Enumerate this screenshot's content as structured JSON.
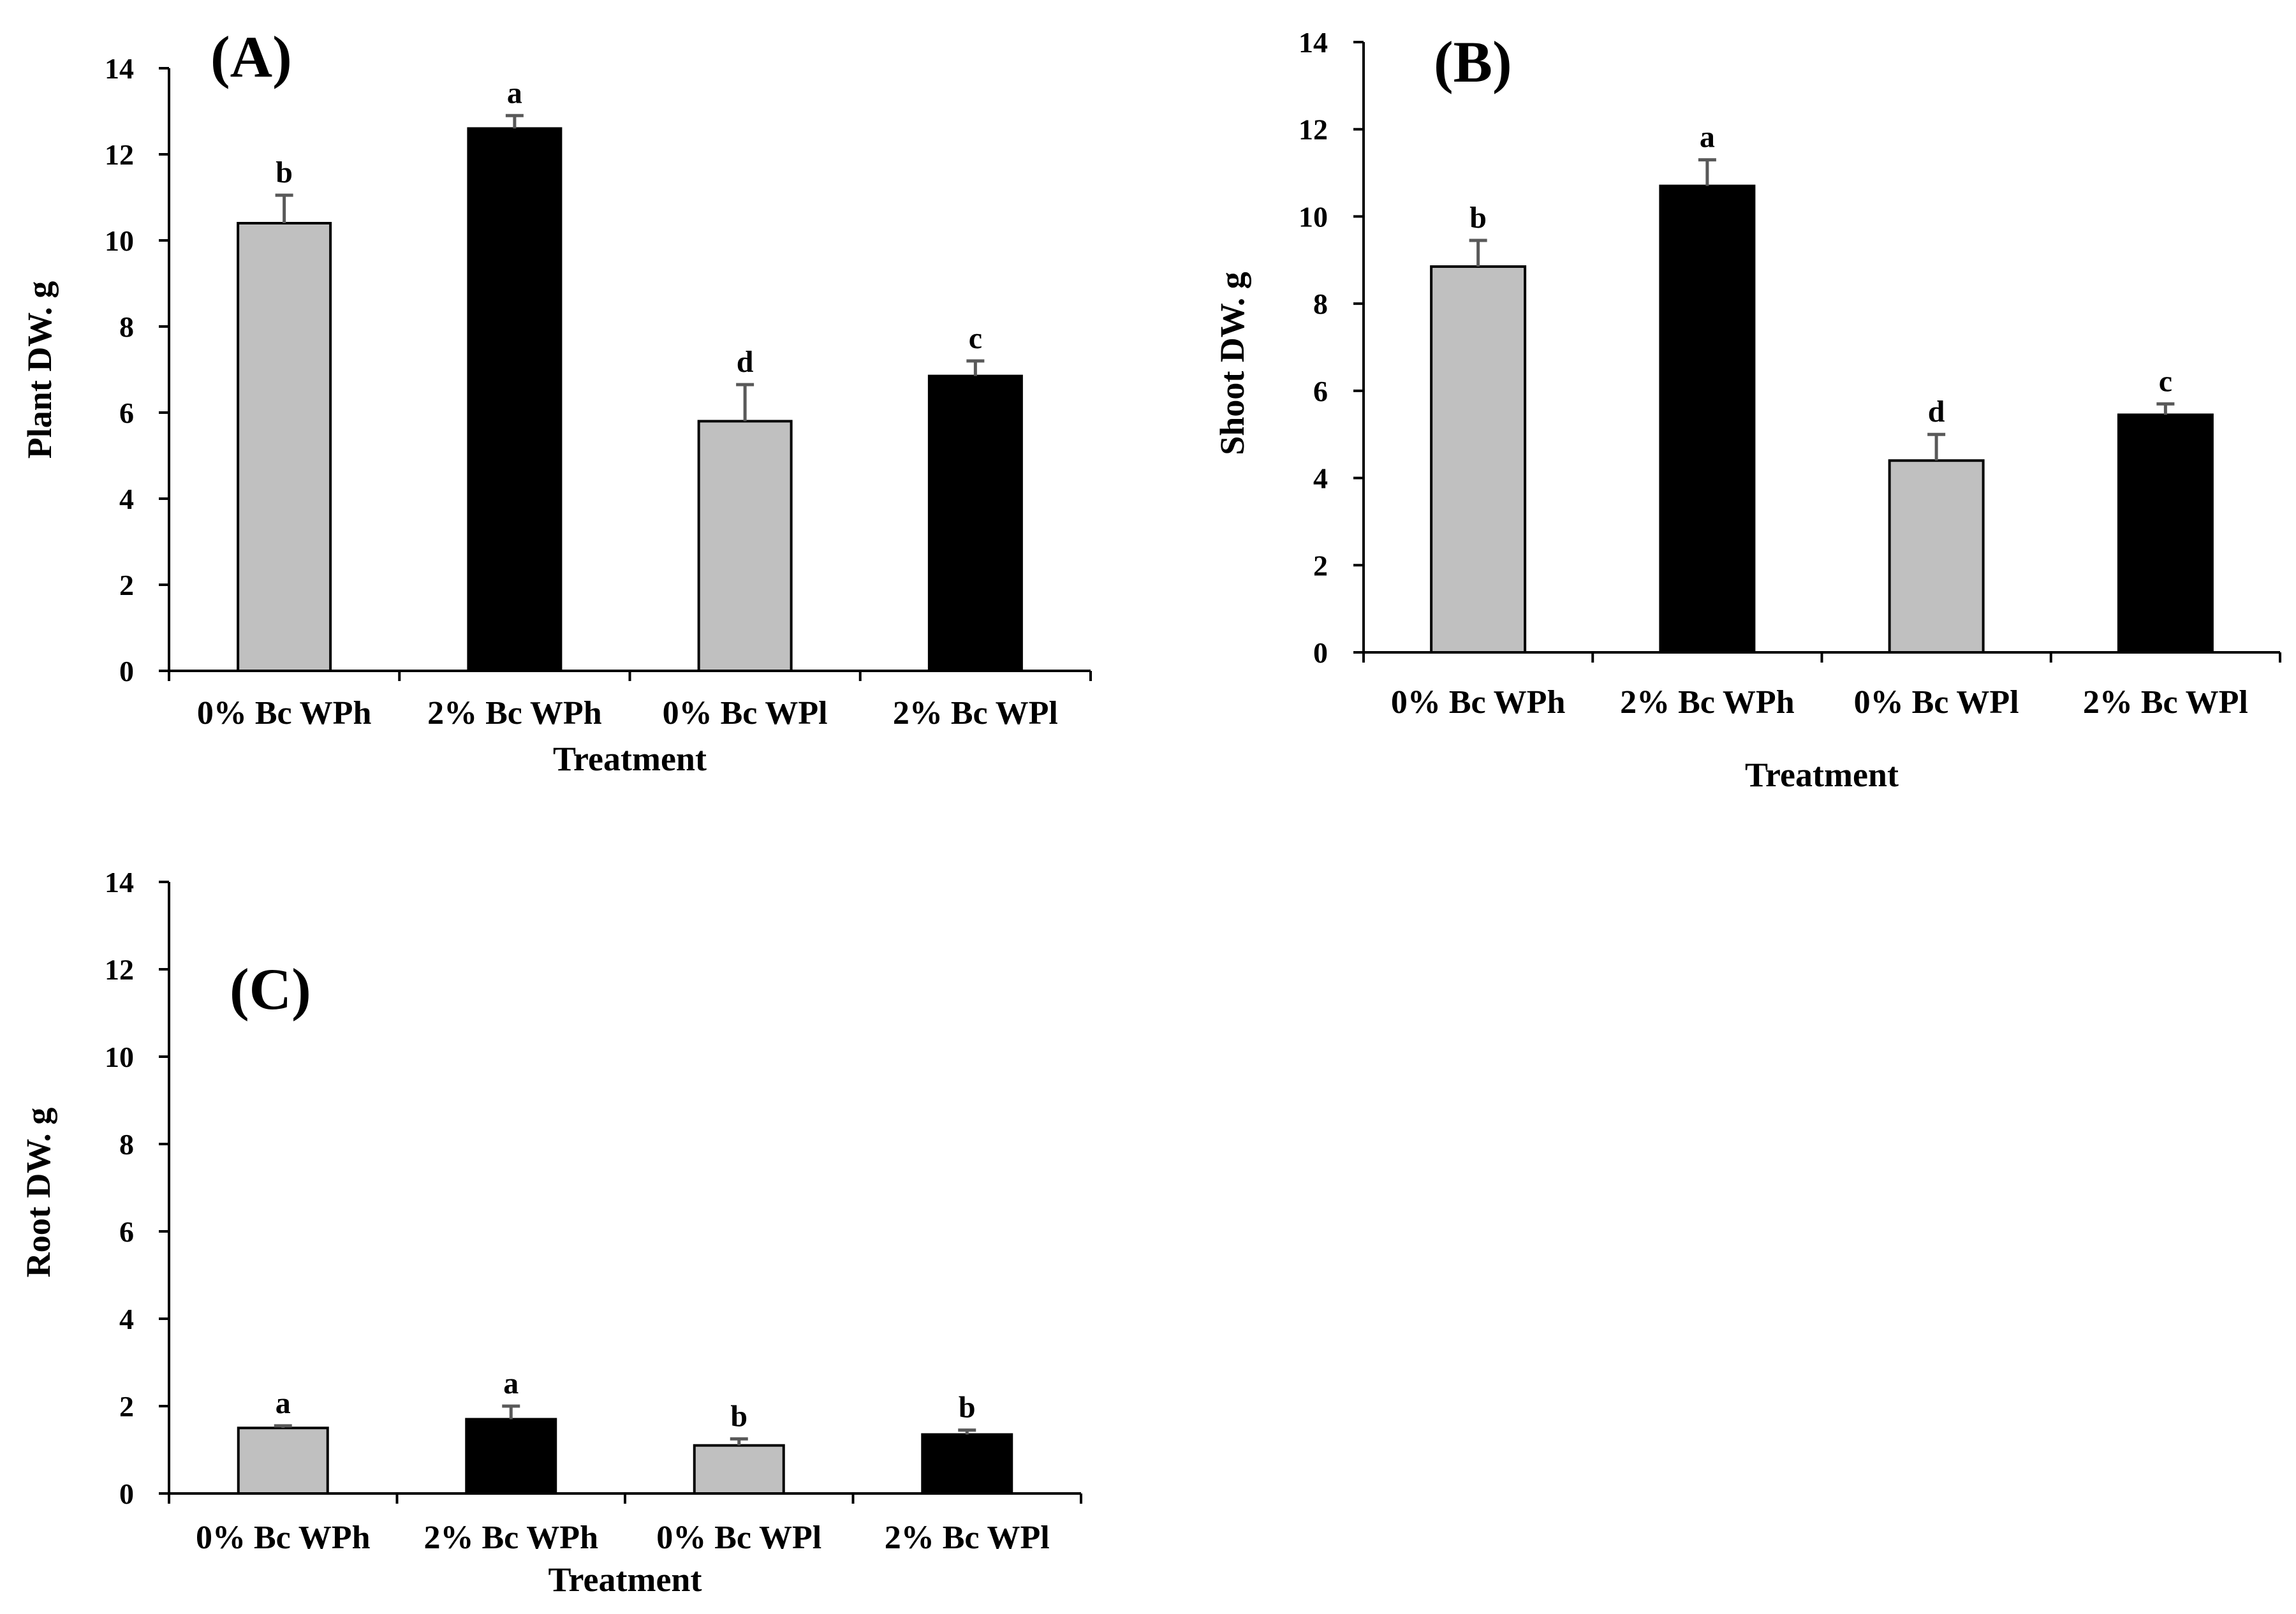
{
  "chart_data": [
    {
      "type": "bar",
      "panel": "(A)",
      "title": "",
      "xlabel": "Treatment",
      "ylabel": "Plant DW. g",
      "ylim": [
        0,
        14
      ],
      "yticks": [
        0,
        2,
        4,
        6,
        8,
        10,
        12,
        14
      ],
      "categories": [
        "0% Bc WPh",
        "2% Bc WPh",
        "0% Bc WPl",
        "2% Bc WPl"
      ],
      "values": [
        10.4,
        12.6,
        5.8,
        6.85
      ],
      "errors": [
        0.65,
        0.3,
        0.85,
        0.35
      ],
      "significance": [
        "b",
        "a",
        "d",
        "c"
      ],
      "bar_colors": [
        "#c0c0c0",
        "#000000",
        "#c0c0c0",
        "#000000"
      ]
    },
    {
      "type": "bar",
      "panel": "(B)",
      "title": "",
      "xlabel": "Treatment",
      "ylabel": "Shoot DW. g",
      "ylim": [
        0,
        14
      ],
      "yticks": [
        0,
        2,
        4,
        6,
        8,
        10,
        12,
        14
      ],
      "categories": [
        "0% Bc WPh",
        "2% Bc WPh",
        "0% Bc WPl",
        "2% Bc WPl"
      ],
      "values": [
        8.85,
        10.7,
        4.4,
        5.45
      ],
      "errors": [
        0.6,
        0.6,
        0.6,
        0.25
      ],
      "significance": [
        "b",
        "a",
        "d",
        "c"
      ],
      "bar_colors": [
        "#c0c0c0",
        "#000000",
        "#c0c0c0",
        "#000000"
      ]
    },
    {
      "type": "bar",
      "panel": "(C)",
      "title": "",
      "xlabel": "Treatment",
      "ylabel": "Root DW. g",
      "ylim": [
        0,
        14
      ],
      "yticks": [
        0,
        2,
        4,
        6,
        8,
        10,
        12,
        14
      ],
      "categories": [
        "0% Bc WPh",
        "2% Bc WPh",
        "0% Bc WPl",
        "2% Bc WPl"
      ],
      "values": [
        1.5,
        1.7,
        1.1,
        1.35
      ],
      "errors": [
        0.05,
        0.3,
        0.15,
        0.1
      ],
      "significance": [
        "a",
        "a",
        "b",
        "b"
      ],
      "bar_colors": [
        "#c0c0c0",
        "#000000",
        "#c0c0c0",
        "#000000"
      ]
    }
  ],
  "colors": {
    "axis": "#000000",
    "error_bar": "#595959",
    "bar_outline": "#000000"
  }
}
